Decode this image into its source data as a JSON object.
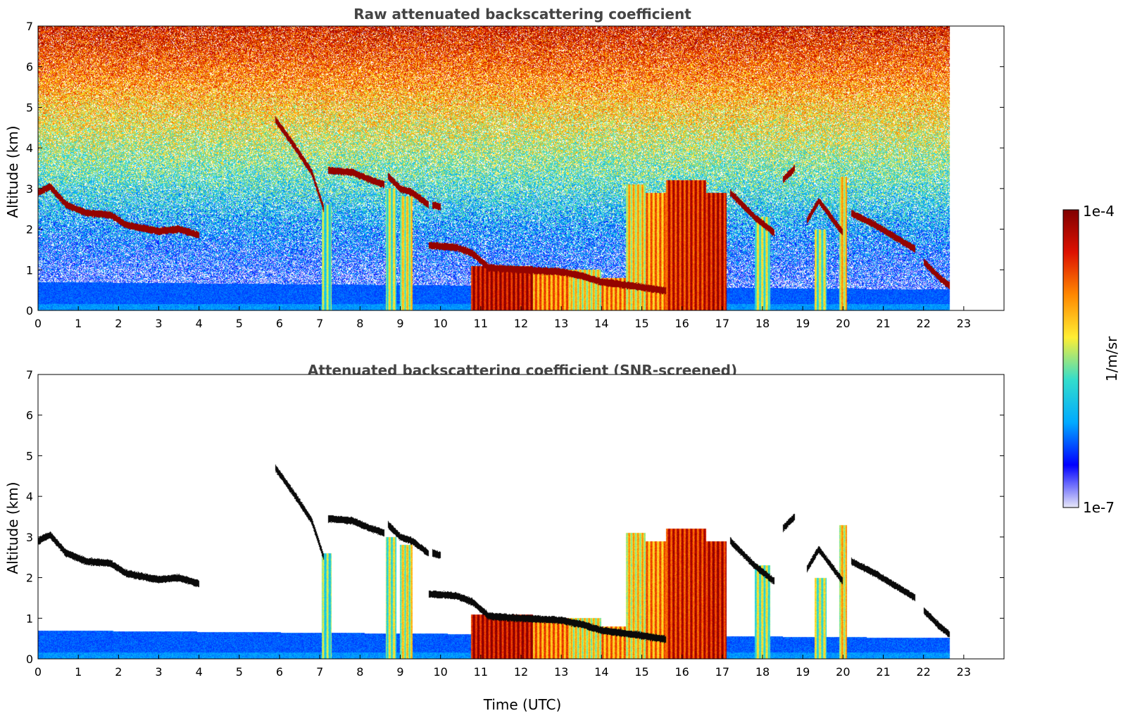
{
  "chart_data": [
    {
      "type": "heatmap",
      "title": "Raw attenuated backscattering coefficient",
      "xlabel": "",
      "ylabel": "Altitude (km)",
      "xlim": [
        0,
        24
      ],
      "ylim": [
        0,
        7
      ],
      "xticks": [
        "0",
        "1",
        "2",
        "3",
        "4",
        "5",
        "6",
        "7",
        "8",
        "9",
        "10",
        "11",
        "12",
        "13",
        "14",
        "15",
        "16",
        "17",
        "18",
        "19",
        "20",
        "21",
        "22",
        "23"
      ],
      "yticks": [
        "0",
        "1",
        "2",
        "3",
        "4",
        "5",
        "6",
        "7"
      ],
      "data_end_time": 22.65,
      "screened": false,
      "grid": false
    },
    {
      "type": "heatmap",
      "title": "Attenuated backscattering coefficient (SNR-screened)",
      "xlabel": "Time (UTC)",
      "ylabel": "Altitude (km)",
      "xlim": [
        0,
        24
      ],
      "ylim": [
        0,
        7
      ],
      "xticks": [
        "0",
        "1",
        "2",
        "3",
        "4",
        "5",
        "6",
        "7",
        "8",
        "9",
        "10",
        "11",
        "12",
        "13",
        "14",
        "15",
        "16",
        "17",
        "18",
        "19",
        "20",
        "21",
        "22",
        "23"
      ],
      "yticks": [
        "0",
        "1",
        "2",
        "3",
        "4",
        "5",
        "6",
        "7"
      ],
      "data_end_time": 22.65,
      "screened": true,
      "grid": false
    }
  ],
  "colorbar": {
    "min_label": "1e-7",
    "max_label": "1e-4",
    "label": "1/m/sr",
    "scale": "log",
    "colormap": [
      "#e8e8f8",
      "#0000ff",
      "#00aaff",
      "#33ddcc",
      "#ffee33",
      "#ff8800",
      "#dd1100",
      "#800000"
    ]
  },
  "features": {
    "cloud_layers": [
      {
        "t": [
          0.0,
          0.3,
          0.7,
          1.2,
          1.8,
          2.2,
          3.0,
          3.5,
          4.0
        ],
        "h": [
          2.9,
          3.05,
          2.6,
          2.4,
          2.35,
          2.1,
          1.95,
          2.0,
          1.85
        ]
      },
      {
        "t": [
          5.9,
          6.4,
          6.8,
          7.1
        ],
        "h": [
          4.7,
          4.0,
          3.4,
          2.5
        ]
      },
      {
        "t": [
          7.2,
          7.8,
          8.3,
          8.6
        ],
        "h": [
          3.45,
          3.4,
          3.2,
          3.1
        ]
      },
      {
        "t": [
          8.7,
          9.0,
          9.3,
          9.7
        ],
        "h": [
          3.3,
          3.0,
          2.9,
          2.6
        ]
      },
      {
        "t": [
          9.8,
          10.0
        ],
        "h": [
          2.6,
          2.55
        ]
      },
      {
        "t": [
          9.7,
          10.4,
          10.8,
          11.2,
          12.0,
          13.0,
          13.5,
          14.0,
          14.8,
          15.6
        ],
        "h": [
          1.6,
          1.55,
          1.4,
          1.05,
          1.0,
          0.95,
          0.85,
          0.7,
          0.6,
          0.48
        ]
      },
      {
        "t": [
          17.2,
          17.8,
          18.3
        ],
        "h": [
          2.9,
          2.3,
          1.9
        ]
      },
      {
        "t": [
          18.5,
          18.8
        ],
        "h": [
          3.2,
          3.5
        ]
      },
      {
        "t": [
          19.1,
          19.4,
          19.7,
          20.0
        ],
        "h": [
          2.2,
          2.7,
          2.3,
          1.9
        ]
      },
      {
        "t": [
          20.2,
          20.8,
          21.3,
          21.8
        ],
        "h": [
          2.4,
          2.1,
          1.8,
          1.5
        ]
      },
      {
        "t": [
          22.0,
          22.4,
          22.65
        ],
        "h": [
          1.2,
          0.8,
          0.6
        ]
      }
    ],
    "precip_shafts": [
      {
        "t0": 7.05,
        "t1": 7.3,
        "top": 2.6,
        "level": 0.45
      },
      {
        "t0": 8.65,
        "t1": 8.9,
        "top": 3.0,
        "level": 0.5
      },
      {
        "t0": 9.0,
        "t1": 9.3,
        "top": 2.8,
        "level": 0.55
      },
      {
        "t0": 10.75,
        "t1": 12.3,
        "top": 1.1,
        "level": 0.9
      },
      {
        "t0": 12.3,
        "t1": 13.2,
        "top": 1.0,
        "level": 0.72
      },
      {
        "t0": 13.2,
        "t1": 14.0,
        "top": 1.0,
        "level": 0.58
      },
      {
        "t0": 14.0,
        "t1": 14.6,
        "top": 0.8,
        "level": 0.7
      },
      {
        "t0": 14.6,
        "t1": 15.1,
        "top": 3.1,
        "level": 0.6
      },
      {
        "t0": 15.1,
        "t1": 15.6,
        "top": 2.9,
        "level": 0.7
      },
      {
        "t0": 15.6,
        "t1": 16.6,
        "top": 3.2,
        "level": 0.85
      },
      {
        "t0": 16.6,
        "t1": 17.1,
        "top": 2.9,
        "level": 0.88
      },
      {
        "t0": 17.8,
        "t1": 18.2,
        "top": 2.3,
        "level": 0.5
      },
      {
        "t0": 19.3,
        "t1": 19.6,
        "top": 2.0,
        "level": 0.5
      },
      {
        "t0": 19.9,
        "t1": 20.1,
        "top": 3.3,
        "level": 0.6
      }
    ],
    "boundary_layer": {
      "top_start": 0.7,
      "top_end": 0.5
    }
  }
}
